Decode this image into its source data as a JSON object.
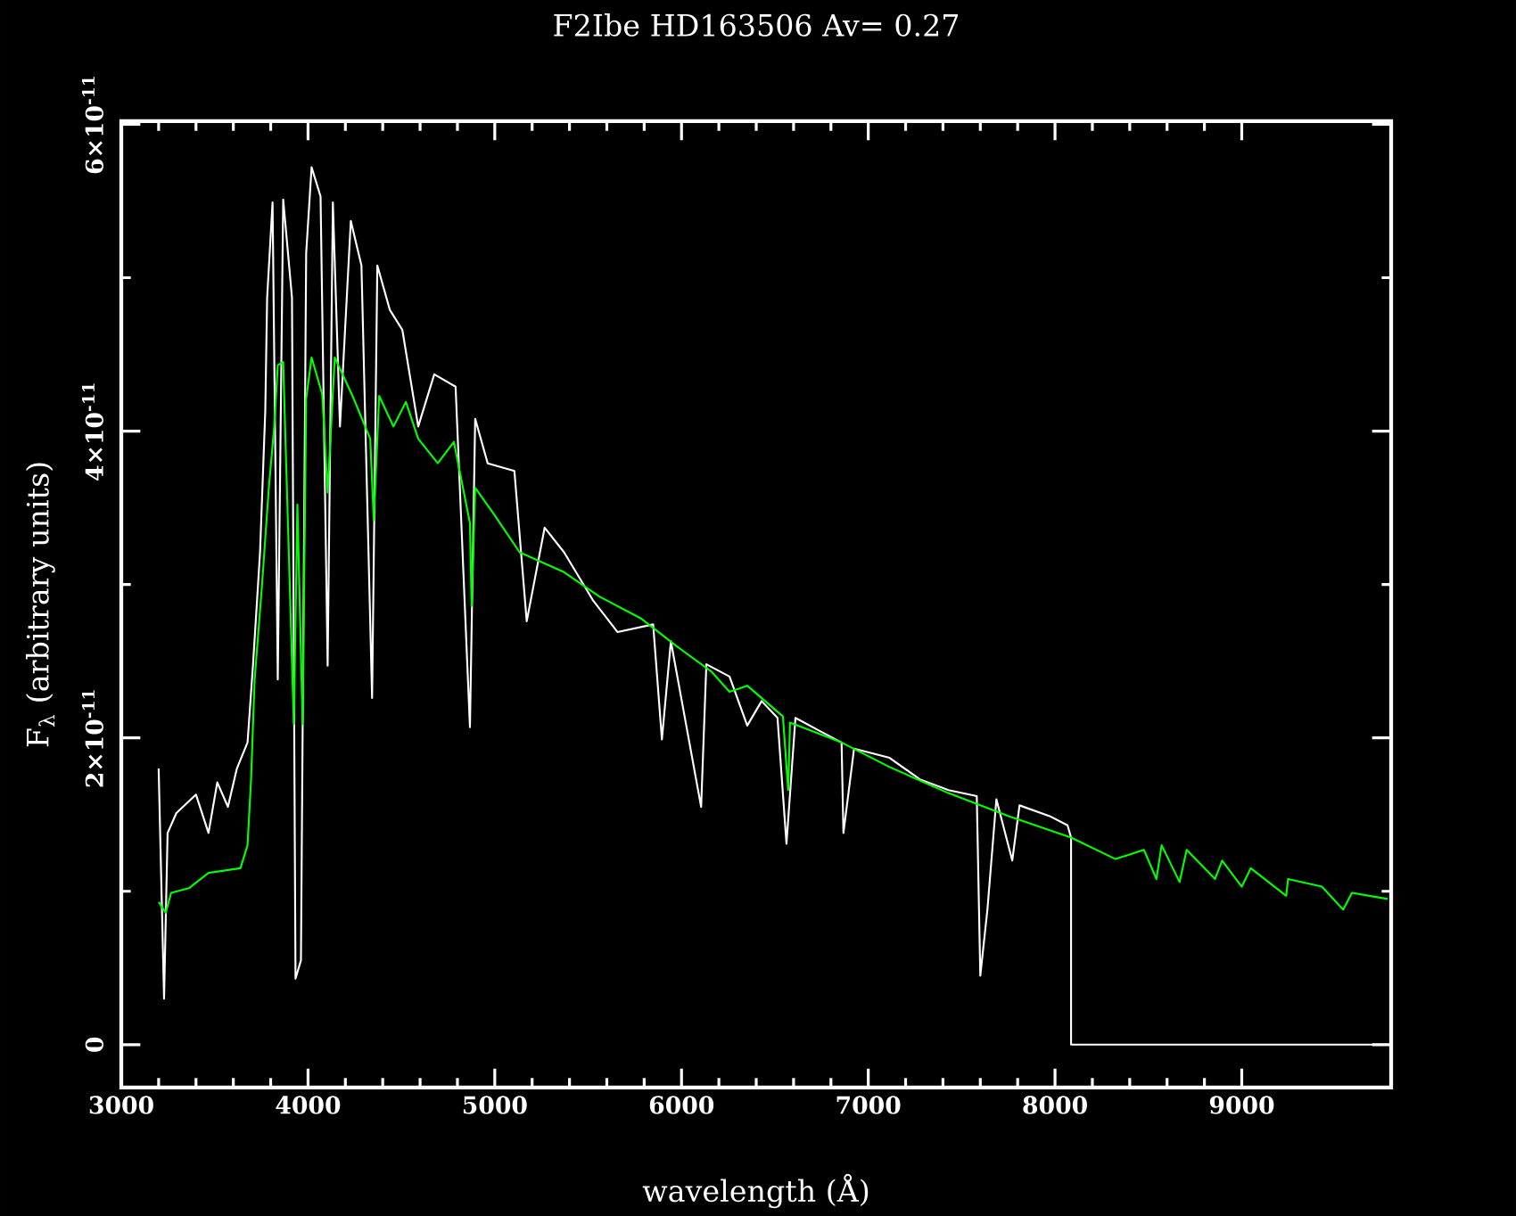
{
  "chart_data": {
    "type": "line",
    "title": "F2Ibe   HD163506       Av=  0.27",
    "xlabel": "wavelength (Å)",
    "ylabel": "F$_{λ}$ (arbitrary units)",
    "xlim": [
      3000,
      9800
    ],
    "ylim": [
      -2.8e-12,
      6.02e-11
    ],
    "xticks": [
      3000,
      4000,
      5000,
      6000,
      7000,
      8000,
      9000
    ],
    "yticks": [
      0,
      {
        "value": 2e-11,
        "label": "2×10$^{-11}$"
      },
      {
        "value": 4e-11,
        "label": "4×10$^{-11}$"
      },
      {
        "value": 6e-11,
        "label": "6×10$^{-11}$"
      }
    ],
    "marker": "none",
    "line_style": "solid",
    "series": [
      {
        "color": "#ffffff",
        "x": [
          3200,
          3229,
          3248,
          3295,
          3400,
          3467,
          3514,
          3571,
          3619,
          3676,
          3705,
          3743,
          3771,
          3781,
          3810,
          3838,
          3867,
          3914,
          3933,
          3962,
          3990,
          4019,
          4067,
          4105,
          4133,
          4171,
          4229,
          4286,
          4343,
          4371,
          4438,
          4505,
          4590,
          4676,
          4790,
          4867,
          4895,
          4962,
          5105,
          5171,
          5267,
          5371,
          5524,
          5657,
          5848,
          5895,
          5943,
          6105,
          6133,
          6257,
          6352,
          6429,
          6514,
          6562,
          6610,
          6733,
          6857,
          6867,
          6924,
          7114,
          7276,
          7429,
          7581,
          7600,
          7638,
          7686,
          7771,
          7810,
          7971,
          8067,
          8086,
          8086,
          9781
        ],
        "values": [
          1.8e-11,
          3e-12,
          1.38e-11,
          1.51e-11,
          1.63e-11,
          1.38e-11,
          1.71e-11,
          1.55e-11,
          1.8e-11,
          1.97e-11,
          2.47e-11,
          3.21e-11,
          4.13e-11,
          4.87e-11,
          5.49e-11,
          2.38e-11,
          5.51e-11,
          4.87e-11,
          4.3e-12,
          5.5e-12,
          5.16e-11,
          5.72e-11,
          5.53e-11,
          2.47e-11,
          5.49e-11,
          4.03e-11,
          5.37e-11,
          5.08e-11,
          2.26e-11,
          5.08e-11,
          4.79e-11,
          4.66e-11,
          4.03e-11,
          4.37e-11,
          4.29e-11,
          2.07e-11,
          4.08e-11,
          3.79e-11,
          3.74e-11,
          2.76e-11,
          3.37e-11,
          3.21e-11,
          2.9e-11,
          2.69e-11,
          2.74e-11,
          1.99e-11,
          2.63e-11,
          1.55e-11,
          2.48e-11,
          2.4e-11,
          2.08e-11,
          2.24e-11,
          2.13e-11,
          1.31e-11,
          2.13e-11,
          2.05e-11,
          1.97e-11,
          1.38e-11,
          1.93e-11,
          1.87e-11,
          1.73e-11,
          1.66e-11,
          1.62e-11,
          4.5e-12,
          8.8e-12,
          1.6e-11,
          1.2e-11,
          1.56e-11,
          1.49e-11,
          1.43e-11,
          1.35e-11,
          0,
          0
        ]
      },
      {
        "color": "#00ff00",
        "x": [
          3200,
          3238,
          3267,
          3362,
          3467,
          3638,
          3676,
          3695,
          3714,
          3752,
          3790,
          3819,
          3838,
          3867,
          3895,
          3924,
          3943,
          3971,
          3990,
          4019,
          4076,
          4105,
          4143,
          4238,
          4333,
          4352,
          4381,
          4457,
          4524,
          4590,
          4695,
          4781,
          4867,
          4876,
          4895,
          5000,
          5133,
          5371,
          5562,
          5781,
          5971,
          6162,
          6257,
          6352,
          6543,
          6571,
          6581,
          6857,
          7114,
          7429,
          7752,
          8086,
          8324,
          8476,
          8543,
          8571,
          8667,
          8705,
          8857,
          8895,
          9000,
          9048,
          9238,
          9248,
          9429,
          9543,
          9590,
          9781
        ],
        "values": [
          9.3e-12,
          8.6e-12,
          9.9e-12,
          1.02e-11,
          1.12e-11,
          1.15e-11,
          1.3e-11,
          1.73e-11,
          2.38e-11,
          2.97e-11,
          3.63e-11,
          4.03e-11,
          4.43e-11,
          4.45e-11,
          3.29e-11,
          2.09e-11,
          3.52e-11,
          2.09e-11,
          4.21e-11,
          4.48e-11,
          4.24e-11,
          3.6e-11,
          4.48e-11,
          4.23e-11,
          3.95e-11,
          3.42e-11,
          4.23e-11,
          4.03e-11,
          4.19e-11,
          3.95e-11,
          3.79e-11,
          3.93e-11,
          3.4e-11,
          2.86e-11,
          3.63e-11,
          3.45e-11,
          3.21e-11,
          3.08e-11,
          2.92e-11,
          2.78e-11,
          2.6e-11,
          2.43e-11,
          2.3e-11,
          2.34e-11,
          2.14e-11,
          1.66e-11,
          2.1e-11,
          1.97e-11,
          1.81e-11,
          1.64e-11,
          1.49e-11,
          1.35e-11,
          1.21e-11,
          1.27e-11,
          1.08e-11,
          1.3e-11,
          1.06e-11,
          1.27e-11,
          1.08e-11,
          1.2e-11,
          1.03e-11,
          1.15e-11,
          9.7e-12,
          1.08e-11,
          1.03e-11,
          8.8e-12,
          9.9e-12,
          9.5e-12
        ]
      }
    ]
  }
}
